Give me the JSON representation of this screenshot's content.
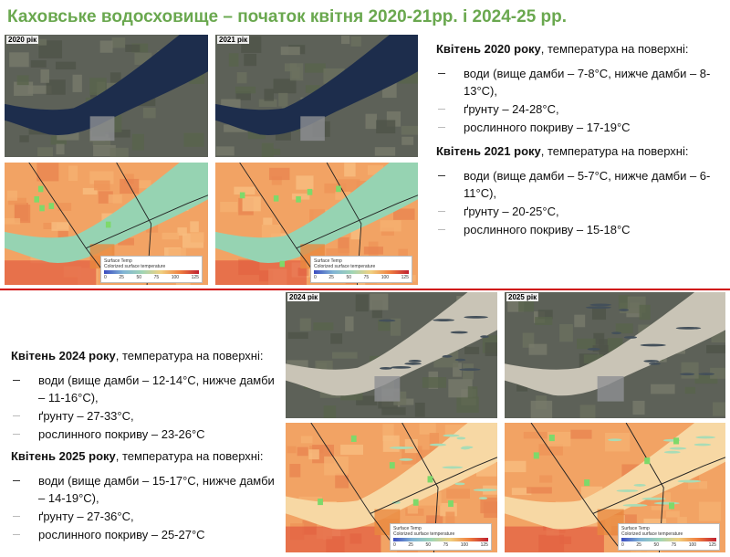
{
  "title": "Каховське водосховище – початок квітня 2020-21рр. і 2024-25 рр.",
  "images": [
    {
      "label": "2020 рік"
    },
    {
      "label": "2021 рік"
    },
    {
      "label": "2024 рік"
    },
    {
      "label": "2025 рік"
    }
  ],
  "legend": {
    "title": "Surface Temp",
    "subtitle": "Colorized surface temperature",
    "ticks": [
      "0",
      "25",
      "50",
      "75",
      "100",
      "125"
    ]
  },
  "sections": [
    {
      "heading": "Квітень 2020 року",
      "intro": ", температура на поверхні:",
      "items": [
        "води (вище дамби – 7-8°C, нижче дамби – 8-13°C),",
        "ґрунту – 24-28°C,",
        "рослинного покриву – 17-19°C"
      ]
    },
    {
      "heading": "Квітень 2021 року",
      "intro": ", температура на поверхні:",
      "items": [
        "води (вище дамби – 5-7°C, нижче дамби – 6-11°C),",
        "ґрунту – 20-25°C,",
        "рослинного покриву – 15-18°C"
      ]
    },
    {
      "heading": "Квітень 2024 року",
      "intro": ", температура на поверхні:",
      "items": [
        "води (вище дамби – 12-14°C, нижче дамби – 11-16°C),",
        "ґрунту – 27-33°C,",
        "рослинного покриву – 23-26°C"
      ]
    },
    {
      "heading": "Квітень 2025 року",
      "intro": ", температура на поверхні:",
      "items": [
        "води (вище дамби – 15-17°C, нижче дамби – 14-19°C),",
        "ґрунту – 27-36°C,",
        "рослинного покриву – 25-27°C"
      ]
    }
  ]
}
